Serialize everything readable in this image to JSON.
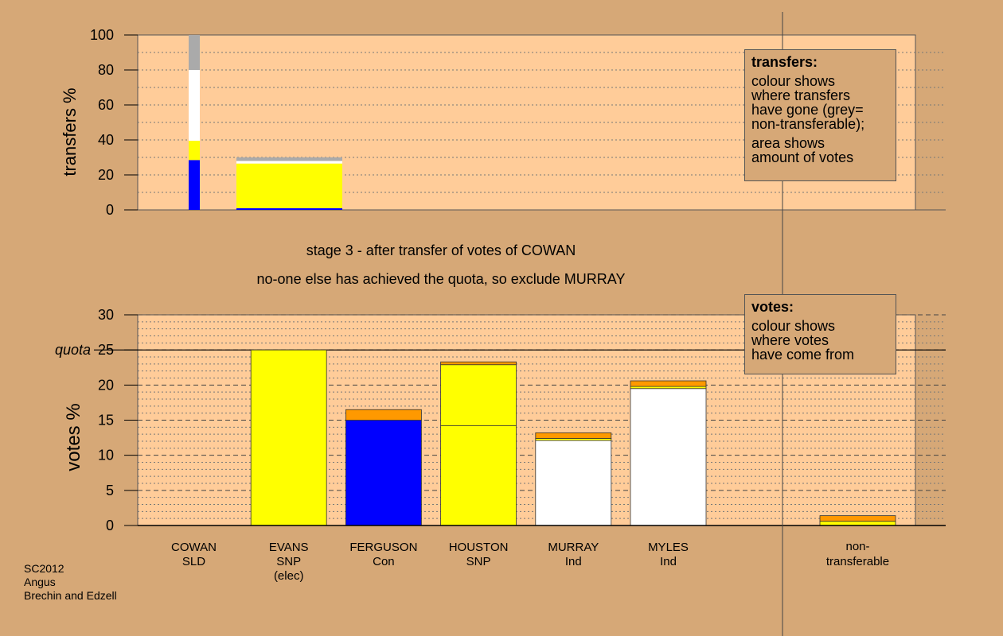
{
  "stage_text": "stage 3 - after transfer of votes of COWAN",
  "exclude_text": "no-one else has achieved the quota, so exclude MURRAY",
  "footer": [
    "SC2012",
    "Angus",
    "Brechin and Edzell"
  ],
  "transfers_note": {
    "heading": "transfers:",
    "lines": [
      "colour shows",
      "where transfers",
      "have gone (grey=",
      "non-transferable);",
      "area shows",
      "amount of votes"
    ]
  },
  "votes_note": {
    "heading": "votes:",
    "lines": [
      "colour shows",
      "where votes",
      "have come from"
    ]
  },
  "colors": {
    "plot_bg": "#FFCC99",
    "page_bg": "#D6A877",
    "LD": "#FF9900",
    "SNP": "#FFFF00",
    "Con": "#0000FF",
    "Ind": "#FFFFFF",
    "nontransferable": "#AAAAAA"
  },
  "chart_data": [
    {
      "type": "bar",
      "name": "transfers",
      "ylabel": "transfers %",
      "ylim": [
        0,
        100
      ],
      "yticks": [
        0,
        20,
        40,
        60,
        80,
        100
      ],
      "bars": [
        {
          "segments": [
            {
              "party": "Con",
              "value": 28.5
            },
            {
              "party": "SNP",
              "value": 11
            },
            {
              "party": "Ind",
              "value": 40.5
            },
            {
              "party": "nontransferable",
              "value": 20
            }
          ]
        },
        {
          "segments": [
            {
              "party": "Con",
              "value": 1
            },
            {
              "party": "SNP",
              "value": 25.5
            },
            {
              "party": "Ind",
              "value": 1.5
            },
            {
              "party": "nontransferable",
              "value": 2
            }
          ]
        }
      ]
    },
    {
      "type": "bar",
      "name": "votes",
      "ylabel": "votes %",
      "ylim": [
        0,
        30
      ],
      "yticks": [
        0,
        5,
        10,
        15,
        20,
        25,
        30
      ],
      "quota": {
        "label": "quota",
        "value": 25
      },
      "candidates": [
        {
          "name": "COWAN",
          "party": "SLD",
          "extra": "",
          "segments": [
            {
              "source": "LD",
              "value": 0
            }
          ]
        },
        {
          "name": "EVANS",
          "party": "SNP",
          "extra": "(elec)",
          "segments": [
            {
              "source": "SNP",
              "value": 25
            }
          ]
        },
        {
          "name": "FERGUSON",
          "party": "Con",
          "extra": "",
          "segments": [
            {
              "source": "Con",
              "value": 15
            },
            {
              "source": "LD",
              "value": 1.5
            }
          ]
        },
        {
          "name": "HOUSTON",
          "party": "SNP",
          "extra": "",
          "segments": [
            {
              "source": "SNP",
              "value": 14.2
            },
            {
              "source": "SNP",
              "value": 8.7
            },
            {
              "source": "LD",
              "value": 0.4
            }
          ]
        },
        {
          "name": "MURRAY",
          "party": "Ind",
          "extra": "",
          "segments": [
            {
              "source": "Ind",
              "value": 12.1
            },
            {
              "source": "SNP",
              "value": 0.3
            },
            {
              "source": "LD",
              "value": 0.8
            }
          ]
        },
        {
          "name": "MYLES",
          "party": "Ind",
          "extra": "",
          "segments": [
            {
              "source": "Ind",
              "value": 19.5
            },
            {
              "source": "SNP",
              "value": 0.3
            },
            {
              "source": "LD",
              "value": 0.8
            }
          ]
        }
      ],
      "nontransferable": {
        "name": "non-",
        "party": "transferable",
        "segments": [
          {
            "source": "SNP",
            "value": 0.6
          },
          {
            "source": "LD",
            "value": 0.8
          }
        ]
      }
    }
  ]
}
